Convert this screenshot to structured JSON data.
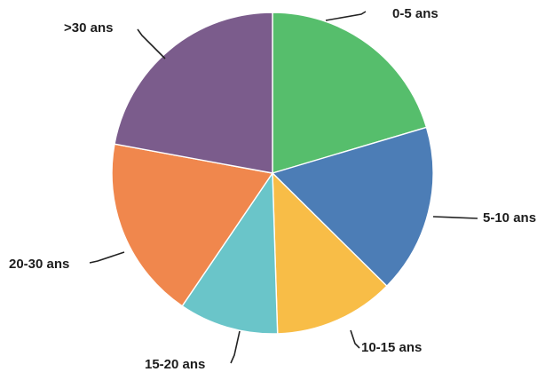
{
  "chart_data": {
    "type": "pie",
    "unit": "percent",
    "slices": [
      {
        "label": "0-5 ans",
        "value": 20.4,
        "color": "#56BE6C"
      },
      {
        "label": "5-10 ans",
        "value": 17.0,
        "color": "#4C7DB6"
      },
      {
        "label": "10-15 ans",
        "value": 12.1,
        "color": "#F8BD47"
      },
      {
        "label": "15-20 ans",
        "value": 10.0,
        "color": "#6AC5C9"
      },
      {
        "label": "20-30 ans",
        "value": 18.4,
        "color": "#F0874D"
      },
      {
        "label": ">30 ans",
        "value": 22.1,
        "color": "#7B5C8C"
      }
    ],
    "start_angle_deg": 0,
    "direction": "clockwise",
    "legend": "none",
    "labels_position": "outside-with-leader-lines"
  }
}
